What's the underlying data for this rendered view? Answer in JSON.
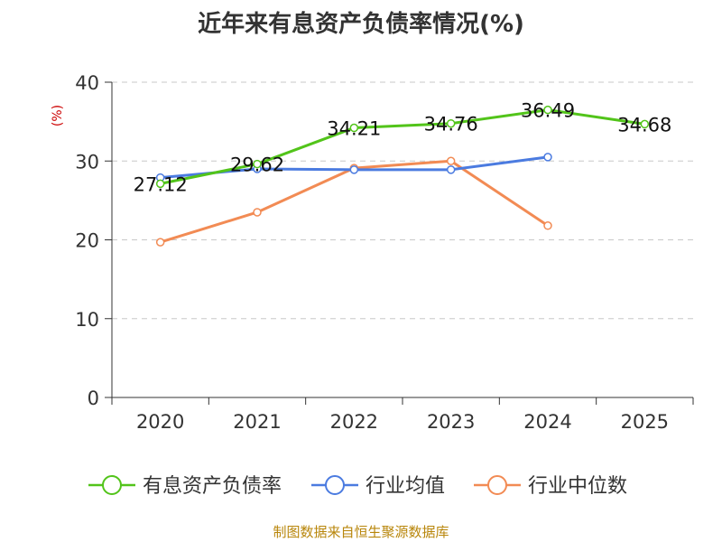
{
  "chart_data": {
    "type": "line",
    "title": "近年来有息资产负债率情况(%)",
    "ylabel": "(%)",
    "xlabel": "",
    "categories": [
      "2020",
      "2021",
      "2022",
      "2023",
      "2024",
      "2025"
    ],
    "ylim": [
      0,
      40
    ],
    "yticks": [
      0,
      10,
      20,
      30,
      40
    ],
    "grid": true,
    "legend_position": "bottom",
    "series": [
      {
        "name": "有息资产负债率",
        "color": "#52c41a",
        "values": [
          27.12,
          29.62,
          34.21,
          34.76,
          36.49,
          34.68
        ],
        "show_labels": true
      },
      {
        "name": "行业均值",
        "color": "#4b7be0",
        "values": [
          27.9,
          29.0,
          28.9,
          28.9,
          30.5,
          null
        ],
        "show_labels": false
      },
      {
        "name": "行业中位数",
        "color": "#f28b54",
        "values": [
          19.7,
          23.5,
          29.1,
          30.0,
          21.8,
          null
        ],
        "show_labels": false
      }
    ]
  },
  "footer": {
    "source": "制图数据来自恒生聚源数据库"
  }
}
